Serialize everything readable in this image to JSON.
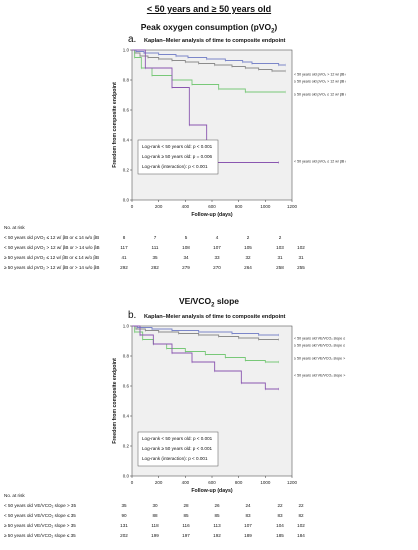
{
  "page_title": "< 50 years and ≥ 50 years old",
  "colors": {
    "series_blue": "#7b86c9",
    "series_gray": "#8c8c8c",
    "series_green": "#78c878",
    "series_purple": "#8a56b0",
    "plot_bg": "#f0f0f0"
  },
  "panels": [
    {
      "title_main": "Peak oxygen consumption (pVO",
      "title_sub": "2",
      "title_end": ")",
      "letter": "a.",
      "km_title": "Kaplan–Meier analysis of time to composite endpoint",
      "logrank": [
        "Log-rank < 50 years old: p < 0.001",
        "Log-rank ≥ 50 years old: p = 0.006",
        "Log-rank (interaction): p < 0.001"
      ],
      "risk_header": "No. at risk",
      "risk_rows": [
        {
          "label": "< 50 years old pVO₂ ≤ 12 w/ βB or ≤ 14 w/o βB",
          "values": [
            "8",
            "7",
            "5",
            "4",
            "2",
            "2",
            ""
          ]
        },
        {
          "label": "< 50 years old pVO₂ > 12 w/ βB or > 14 w/o βB",
          "values": [
            "117",
            "111",
            "108",
            "107",
            "105",
            "103",
            "102"
          ]
        },
        {
          "label": "≥ 50 years old pVO₂ ≤ 12 w/ βB or ≤ 14 w/o βB",
          "values": [
            "41",
            "35",
            "34",
            "33",
            "32",
            "31",
            "31"
          ]
        },
        {
          "label": "≥ 50 years old pVO₂ > 12 w/ βB or > 14 w/o βB",
          "values": [
            "292",
            "282",
            "279",
            "270",
            "264",
            "258",
            "255"
          ]
        }
      ]
    },
    {
      "title_main": "VE/VCO",
      "title_sub": "2",
      "title_end": " slope",
      "letter": "b.",
      "km_title": "Kaplan–Meier analysis of time to composite endpoint",
      "logrank": [
        "Log-rank < 50 years old: p < 0.001",
        "Log-rank ≥ 50 years old: p < 0.001",
        "Log-rank (interaction): p < 0.001"
      ],
      "risk_header": "No. at risk",
      "risk_rows": [
        {
          "label": "< 50 years old VE/VCO₂ slope > 35",
          "values": [
            "35",
            "30",
            "28",
            "26",
            "24",
            "22",
            "22"
          ]
        },
        {
          "label": "< 50 years old VE/VCO₂ slope ≤ 35",
          "values": [
            "90",
            "88",
            "85",
            "85",
            "83",
            "83",
            "82"
          ]
        },
        {
          "label": "≥ 50 years old VE/VCO₂ slope > 35",
          "values": [
            "131",
            "118",
            "116",
            "113",
            "107",
            "104",
            "102"
          ]
        },
        {
          "label": "≥ 50 years old VE/VCO₂ slope ≤ 35",
          "values": [
            "202",
            "199",
            "197",
            "192",
            "189",
            "185",
            "184"
          ]
        }
      ]
    }
  ],
  "chart_data": [
    {
      "type": "line",
      "step": true,
      "title": "Kaplan–Meier analysis of time to composite endpoint",
      "xlabel": "Follow-up (days)",
      "ylabel": "Freedom from composite endpoint",
      "xlim": [
        0,
        1200
      ],
      "ylim": [
        0,
        1.0
      ],
      "xticks": [
        "0",
        "200",
        "400",
        "600",
        "800",
        "1000",
        "1200"
      ],
      "yticks": [
        "0.0",
        "0.2",
        "0.4",
        "0.6",
        "0.8",
        "1.0"
      ],
      "grid": false,
      "series": [
        {
          "name": "< 50 years old pVO₂ > 12 w/ βB or > 14 w/o βB",
          "color": "#7b86c9",
          "x": [
            0,
            30,
            90,
            200,
            330,
            420,
            560,
            700,
            830,
            900,
            1100,
            1150
          ],
          "y": [
            1.0,
            0.99,
            0.98,
            0.97,
            0.96,
            0.95,
            0.94,
            0.93,
            0.92,
            0.91,
            0.9,
            0.9
          ]
        },
        {
          "name": "≥ 50 years old pVO₂ > 12 w/ βB or > 14 w/o βB",
          "color": "#8c8c8c",
          "x": [
            0,
            20,
            60,
            120,
            200,
            300,
            400,
            500,
            620,
            750,
            850,
            950,
            1050,
            1150
          ],
          "y": [
            1.0,
            0.98,
            0.96,
            0.95,
            0.94,
            0.93,
            0.92,
            0.91,
            0.9,
            0.89,
            0.88,
            0.87,
            0.86,
            0.86
          ]
        },
        {
          "name": "≥ 50 years old pVO₂ ≤ 12 w/ βB or ≤ 14 w/o βB",
          "color": "#78c878",
          "x": [
            0,
            20,
            70,
            150,
            300,
            450,
            650,
            850,
            1150
          ],
          "y": [
            1.0,
            0.95,
            0.88,
            0.83,
            0.8,
            0.77,
            0.74,
            0.72,
            0.72
          ]
        },
        {
          "name": "< 50 years old pVO₂ ≤ 12 w/ βB or ≤ 14 w/o βB",
          "color": "#8a56b0",
          "x": [
            0,
            100,
            300,
            430,
            560,
            1100
          ],
          "y": [
            1.0,
            0.88,
            0.75,
            0.5,
            0.25,
            0.25
          ]
        }
      ],
      "annotations": [
        "Log-rank < 50 years old: p < 0.001",
        "Log-rank ≥ 50 years old: p = 0.006",
        "Log-rank (interaction): p < 0.001"
      ]
    },
    {
      "type": "line",
      "step": true,
      "title": "Kaplan–Meier analysis of time to composite endpoint",
      "xlabel": "Follow-up (days)",
      "ylabel": "Freedom from composite endpoint",
      "xlim": [
        0,
        1200
      ],
      "ylim": [
        0,
        1.0
      ],
      "xticks": [
        "0",
        "200",
        "400",
        "600",
        "800",
        "1000",
        "1200"
      ],
      "yticks": [
        "0.0",
        "0.2",
        "0.4",
        "0.6",
        "0.8",
        "1.0"
      ],
      "grid": false,
      "series": [
        {
          "name": "< 50 years old VE/VCO₂ slope ≤ 35",
          "color": "#7b86c9",
          "x": [
            0,
            40,
            150,
            300,
            500,
            750,
            950,
            1100
          ],
          "y": [
            1.0,
            0.99,
            0.98,
            0.97,
            0.96,
            0.95,
            0.94,
            0.94
          ]
        },
        {
          "name": "≥ 50 years old VE/VCO₂ slope ≤ 35",
          "color": "#8c8c8c",
          "x": [
            0,
            30,
            100,
            200,
            350,
            500,
            650,
            800,
            950,
            1100
          ],
          "y": [
            1.0,
            0.98,
            0.97,
            0.96,
            0.95,
            0.94,
            0.93,
            0.92,
            0.91,
            0.91
          ]
        },
        {
          "name": "≥ 50 years old VE/VCO₂ slope > 35",
          "color": "#78c878",
          "x": [
            0,
            20,
            80,
            160,
            260,
            400,
            550,
            700,
            850,
            1000,
            1100
          ],
          "y": [
            1.0,
            0.96,
            0.91,
            0.88,
            0.85,
            0.83,
            0.81,
            0.79,
            0.77,
            0.76,
            0.76
          ]
        },
        {
          "name": "< 50 years old VE/VCO₂ slope > 35",
          "color": "#8a56b0",
          "x": [
            0,
            60,
            160,
            300,
            450,
            620,
            820,
            1000,
            1100
          ],
          "y": [
            1.0,
            0.94,
            0.88,
            0.82,
            0.76,
            0.7,
            0.62,
            0.58,
            0.58
          ]
        }
      ],
      "annotations": [
        "Log-rank < 50 years old: p < 0.001",
        "Log-rank ≥ 50 years old: p < 0.001",
        "Log-rank (interaction): p < 0.001"
      ]
    }
  ]
}
